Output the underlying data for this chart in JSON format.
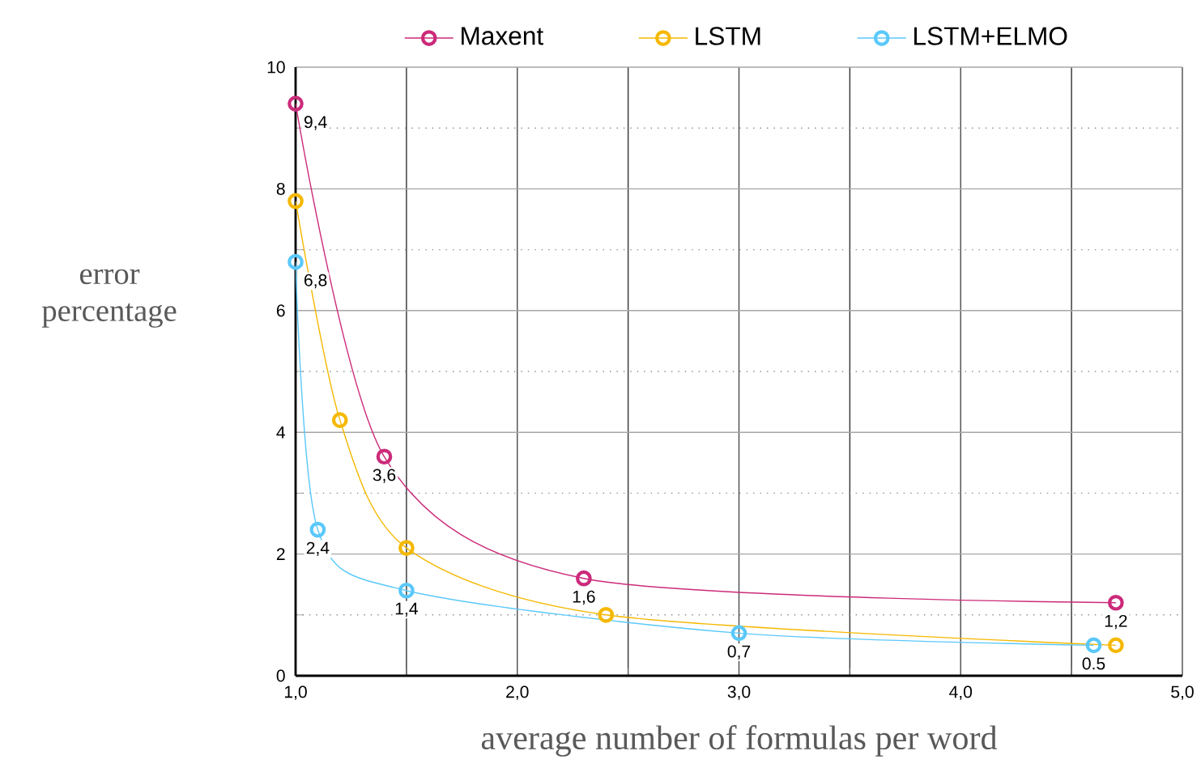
{
  "chart_data": {
    "type": "line",
    "xlabel": "average number of formulas per word",
    "ylabel": "error percentage",
    "xlim": [
      1,
      5
    ],
    "xticks": [
      {
        "value": 1,
        "label": "1,0"
      },
      {
        "value": 2,
        "label": "2,0"
      },
      {
        "value": 3,
        "label": "3,0"
      },
      {
        "value": 4,
        "label": "4,0"
      },
      {
        "value": 5,
        "label": "5,0"
      }
    ],
    "ylim": [
      0,
      10
    ],
    "yticks": [
      0,
      2,
      4,
      6,
      8,
      10
    ],
    "grid": true,
    "legend": "top",
    "marker": "circle",
    "line_style": "solid",
    "series": [
      {
        "name": "Maxent",
        "color": "#cc2a7a",
        "x": [
          1.0,
          1.4,
          2.3,
          4.7
        ],
        "values": [
          9.4,
          3.6,
          1.6,
          1.2
        ],
        "value_labels": [
          "9,4",
          "3,6",
          "1,6",
          "1,2"
        ]
      },
      {
        "name": "LSTM",
        "color": "#f5b800",
        "x": [
          1.0,
          1.2,
          1.5,
          2.4,
          4.7
        ],
        "values": [
          7.8,
          4.2,
          2.1,
          1.0,
          0.5
        ]
      },
      {
        "name": "LSTM+ELMO",
        "color": "#5ac8fa",
        "x": [
          1.0,
          1.1,
          1.5,
          3.0,
          4.6
        ],
        "values": [
          6.8,
          2.4,
          1.4,
          0.7,
          0.5
        ],
        "value_labels": [
          "6,8",
          "2,4",
          "1,4",
          "0,7",
          "0.5"
        ]
      }
    ]
  }
}
